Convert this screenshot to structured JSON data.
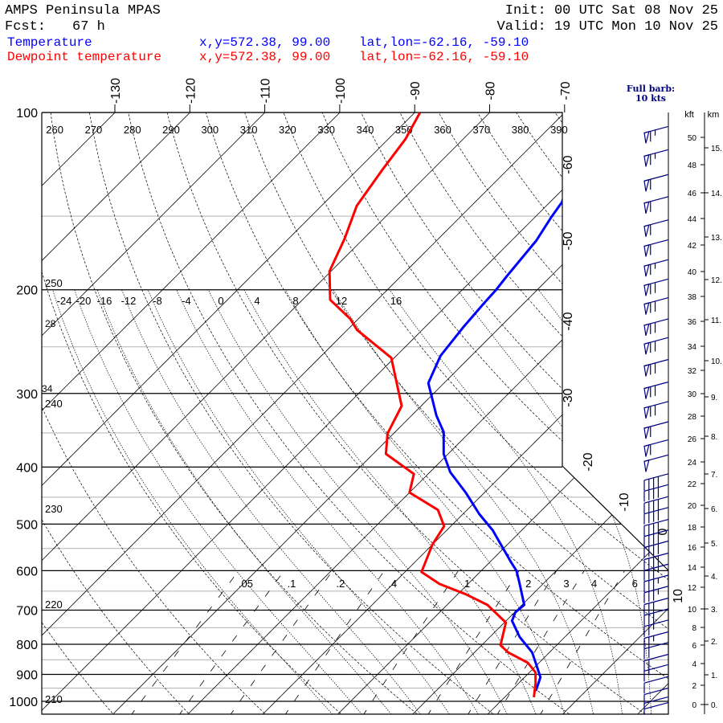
{
  "header": {
    "model": "AMPS Peninsula MPAS",
    "fcst_label": "Fcst:",
    "fcst_value": "67 h",
    "init": "Init: 00 UTC Sat 08 Nov 25",
    "valid": "Valid: 19 UTC Mon 10 Nov 25"
  },
  "legend": [
    {
      "name": "Temperature",
      "xy": "x,y=572.38, 99.00",
      "latlon": "lat,lon=-62.16, -59.10",
      "color": "#0000ff"
    },
    {
      "name": "Dewpoint temperature",
      "xy": "x,y=572.38, 99.00",
      "latlon": "lat,lon=-62.16, -59.10",
      "color": "#ff0000"
    }
  ],
  "barb_legend": {
    "line1": "Full barb:",
    "line2": "10 kts"
  },
  "chart_data": {
    "type": "line",
    "subtype": "skew-T log-p",
    "ylabel": "Pressure (hPa)",
    "pressure_ticks": [
      100,
      200,
      300,
      400,
      500,
      600,
      700,
      800,
      900,
      1000
    ],
    "minor_isobars": [
      150,
      250,
      350,
      450,
      550,
      650,
      750,
      850,
      950
    ],
    "isotherm_top_labels": [
      "-130",
      "-120",
      "-110",
      "-100",
      "-90",
      "-80",
      "-70"
    ],
    "isotherm_side_labels": [
      "-60",
      "-50",
      "-40",
      "-30",
      "-20",
      "-10",
      "0",
      "10"
    ],
    "isotherms_c": [
      -150,
      -140,
      -130,
      -120,
      -110,
      -100,
      -90,
      -80,
      -70,
      -60,
      -50,
      -40,
      -30,
      -20,
      -10,
      0,
      10,
      20,
      30,
      40
    ],
    "dry_adiabats_k": [
      210,
      220,
      230,
      240,
      250,
      260,
      270,
      280,
      290,
      300,
      310,
      320,
      330,
      340,
      350,
      360,
      370,
      380,
      390,
      400,
      410,
      420,
      430
    ],
    "dry_adiabat_top_labels": [
      "260",
      "270",
      "280",
      "290",
      "300",
      "310",
      "320",
      "330",
      "340",
      "350",
      "360",
      "370",
      "380",
      "390"
    ],
    "dry_adiabat_left_labels": [
      "250",
      "240",
      "230",
      "220",
      "210"
    ],
    "moist_adiabats_c": [
      -24,
      -20,
      -16,
      -12,
      -8,
      -4,
      0,
      4,
      8,
      12,
      16,
      20,
      24,
      28,
      32
    ],
    "moist_adiabat_labels": [
      "-24",
      "-20",
      "-16",
      "-12",
      "-8",
      "-4",
      "0",
      "4",
      "8",
      "12",
      "16"
    ],
    "moist_adiabat_left_labels": [
      "28",
      "34"
    ],
    "mixing_ratio_gkg": [
      0.05,
      0.1,
      0.2,
      0.4,
      1,
      2,
      3,
      4,
      6
    ],
    "mixing_ratio_labels": [
      ".05",
      ".1",
      ".2",
      ".4",
      "1",
      "2",
      "3",
      "4",
      "6"
    ],
    "series": [
      {
        "name": "Temperature",
        "color": "#0000ff",
        "p": [
          100,
          110,
          126,
          142,
          151,
          165,
          189,
          200,
          212,
          231,
          259,
          288,
          327,
          349,
          380,
          408,
          442,
          481,
          512,
          581,
          600,
          632,
          686,
          706,
          730,
          778,
          826,
          865,
          910,
          930,
          960
        ],
        "t": [
          -65.8,
          -64.3,
          -61.1,
          -58.4,
          -57.8,
          -56.7,
          -55.9,
          -55.5,
          -55.3,
          -54.9,
          -54.1,
          -52.1,
          -46.7,
          -43.5,
          -40.6,
          -37.3,
          -32.5,
          -27.8,
          -23.9,
          -17.1,
          -15.3,
          -13.1,
          -9.7,
          -9.9,
          -9.2,
          -6.0,
          -2.3,
          -0.2,
          2.1,
          2.6,
          3.3
        ]
      },
      {
        "name": "Dewpoint temperature",
        "color": "#ff0000",
        "p": [
          100,
          111,
          125,
          144,
          164,
          186,
          208,
          224,
          234,
          261,
          315,
          351,
          380,
          411,
          442,
          473,
          504,
          542,
          603,
          632,
          658,
          686,
          735,
          803,
          826,
          860,
          893,
          930,
          984
        ],
        "t": [
          -89.3,
          -87.7,
          -86.7,
          -85.3,
          -82.5,
          -80.2,
          -76.3,
          -71.1,
          -68.7,
          -60.4,
          -52.6,
          -50.8,
          -48.3,
          -41.9,
          -40.0,
          -33.9,
          -30.9,
          -30.0,
          -27.8,
          -23.8,
          -18.9,
          -14.6,
          -9.8,
          -7.5,
          -5.5,
          -1.5,
          0.8,
          2.2,
          3.9
        ]
      }
    ],
    "winds": {
      "alt_kft": [
        50.8,
        49.1,
        47.3,
        45.7,
        43.9,
        42.4,
        40.9,
        39.4,
        37.9,
        36.2,
        34.7,
        32.9,
        31.0,
        29.3,
        27.5,
        25.9,
        24.6,
        22.9,
        21.9,
        20.8,
        19.8,
        18.7,
        17.7,
        16.6,
        15.4,
        14.3,
        13.2,
        12.1,
        11.0,
        10.0,
        8.8,
        7.5,
        6.3,
        5.0,
        3.9,
        2.8,
        1.7,
        0.8,
        0.2
      ],
      "speed_kt": [
        65,
        65,
        60,
        60,
        60,
        60,
        65,
        70,
        70,
        70,
        70,
        70,
        70,
        70,
        60,
        60,
        50,
        40,
        40,
        40,
        40,
        40,
        40,
        40,
        40,
        35,
        35,
        35,
        30,
        30,
        25,
        25,
        20,
        20,
        15,
        10,
        10,
        5,
        5
      ]
    },
    "height_axis": {
      "kft_title": "kft",
      "km_title": "km",
      "kft_labels": [
        "0",
        "2",
        "4",
        "6",
        "8",
        "10",
        "12",
        "14",
        "16",
        "18",
        "20",
        "22",
        "24",
        "26",
        "28",
        "30",
        "32",
        "34",
        "36",
        "38",
        "40",
        "42",
        "44",
        "46",
        "48",
        "50"
      ],
      "km_labels": [
        "0.",
        "1.",
        "2.",
        "3.",
        "4.",
        "5.",
        "6.",
        "7.",
        "8.",
        "9.",
        "10.",
        "11.",
        "12.",
        "13.",
        "14.",
        "15."
      ]
    }
  }
}
